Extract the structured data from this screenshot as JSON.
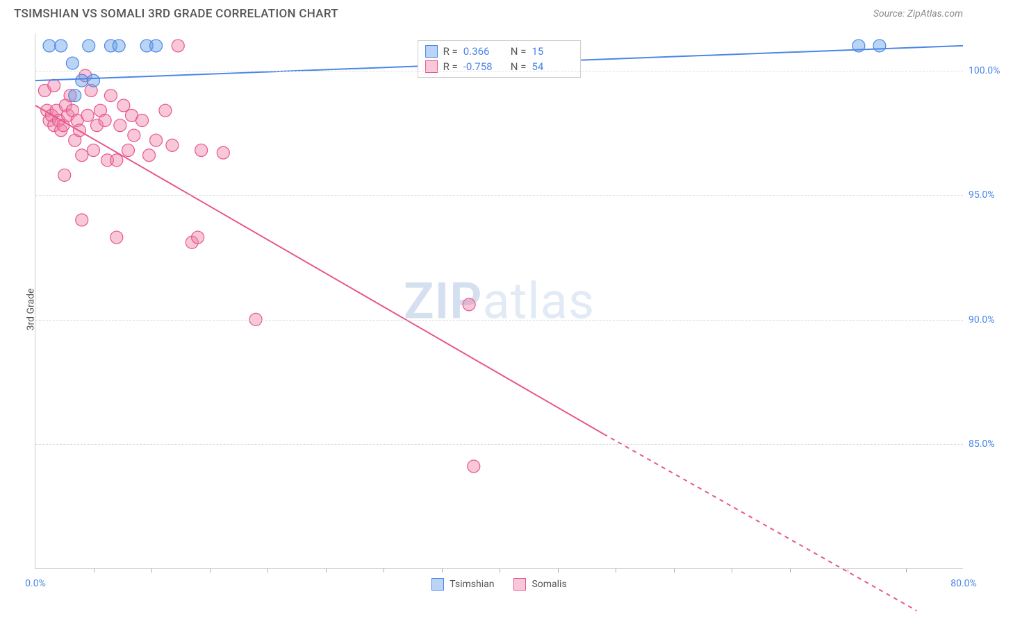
{
  "title": "TSIMSHIAN VS SOMALI 3RD GRADE CORRELATION CHART",
  "source": "Source: ZipAtlas.com",
  "watermark": {
    "bold": "ZIP",
    "rest": "atlas"
  },
  "y_axis_label": "3rd Grade",
  "chart": {
    "type": "scatter",
    "xlim": [
      0,
      80
    ],
    "ylim": [
      80,
      101.5
    ],
    "xticks_minor_step": 5,
    "xticks_labels": [
      {
        "x": 0,
        "label": "0.0%"
      },
      {
        "x": 80,
        "label": "80.0%"
      }
    ],
    "yticks": [
      {
        "y": 85,
        "label": "85.0%"
      },
      {
        "y": 90,
        "label": "90.0%"
      },
      {
        "y": 95,
        "label": "95.0%"
      },
      {
        "y": 100,
        "label": "100.0%"
      }
    ],
    "background_color": "#ffffff",
    "grid_color": "#dddddd",
    "tick_label_color": "#4a86e8",
    "marker_radius": 9,
    "marker_opacity": 0.45,
    "line_width": 2
  },
  "series": {
    "tsimshian": {
      "label": "Tsimshian",
      "color_stroke": "#4a86e8",
      "color_fill": "rgba(100,160,230,0.45)",
      "R": "0.366",
      "N": "15",
      "trend": {
        "x1": 0,
        "y1": 99.6,
        "x2": 80,
        "y2": 101.0
      },
      "points": [
        {
          "x": 1.2,
          "y": 101.0
        },
        {
          "x": 2.2,
          "y": 101.0
        },
        {
          "x": 3.2,
          "y": 100.3
        },
        {
          "x": 3.4,
          "y": 99.0
        },
        {
          "x": 4.0,
          "y": 99.6
        },
        {
          "x": 4.6,
          "y": 101.0
        },
        {
          "x": 5.0,
          "y": 99.6
        },
        {
          "x": 6.5,
          "y": 101.0
        },
        {
          "x": 7.2,
          "y": 101.0
        },
        {
          "x": 9.6,
          "y": 101.0
        },
        {
          "x": 10.4,
          "y": 101.0
        },
        {
          "x": 71.0,
          "y": 101.0
        },
        {
          "x": 72.8,
          "y": 101.0
        }
      ]
    },
    "somalis": {
      "label": "Somalis",
      "color_stroke": "#e8568a",
      "color_fill": "rgba(240,130,170,0.45)",
      "R": "-0.758",
      "N": "54",
      "trend_solid": {
        "x1": 0,
        "y1": 98.6,
        "x2": 49,
        "y2": 85.4
      },
      "trend_dashed": {
        "x1": 49,
        "y1": 85.4,
        "x2": 76,
        "y2": 78.3
      },
      "points": [
        {
          "x": 0.8,
          "y": 99.2
        },
        {
          "x": 1.0,
          "y": 98.4
        },
        {
          "x": 1.2,
          "y": 98.0
        },
        {
          "x": 1.4,
          "y": 98.2
        },
        {
          "x": 1.6,
          "y": 97.8
        },
        {
          "x": 1.6,
          "y": 99.4
        },
        {
          "x": 1.8,
          "y": 98.4
        },
        {
          "x": 2.0,
          "y": 98.0
        },
        {
          "x": 2.2,
          "y": 97.6
        },
        {
          "x": 2.4,
          "y": 97.8
        },
        {
          "x": 2.6,
          "y": 98.6
        },
        {
          "x": 2.8,
          "y": 98.2
        },
        {
          "x": 2.5,
          "y": 95.8
        },
        {
          "x": 3.0,
          "y": 99.0
        },
        {
          "x": 3.2,
          "y": 98.4
        },
        {
          "x": 3.4,
          "y": 97.2
        },
        {
          "x": 3.6,
          "y": 98.0
        },
        {
          "x": 3.8,
          "y": 97.6
        },
        {
          "x": 4.0,
          "y": 96.6
        },
        {
          "x": 4.3,
          "y": 99.8
        },
        {
          "x": 4.5,
          "y": 98.2
        },
        {
          "x": 4.8,
          "y": 99.2
        },
        {
          "x": 5.0,
          "y": 96.8
        },
        {
          "x": 5.3,
          "y": 97.8
        },
        {
          "x": 5.6,
          "y": 98.4
        },
        {
          "x": 6.0,
          "y": 98.0
        },
        {
          "x": 6.2,
          "y": 96.4
        },
        {
          "x": 6.5,
          "y": 99.0
        },
        {
          "x": 7.0,
          "y": 96.4
        },
        {
          "x": 7.3,
          "y": 97.8
        },
        {
          "x": 7.6,
          "y": 98.6
        },
        {
          "x": 8.0,
          "y": 96.8
        },
        {
          "x": 8.3,
          "y": 98.2
        },
        {
          "x": 4.0,
          "y": 94.0
        },
        {
          "x": 7.0,
          "y": 93.3
        },
        {
          "x": 8.5,
          "y": 97.4
        },
        {
          "x": 9.2,
          "y": 98.0
        },
        {
          "x": 9.8,
          "y": 96.6
        },
        {
          "x": 10.4,
          "y": 97.2
        },
        {
          "x": 11.2,
          "y": 98.4
        },
        {
          "x": 11.8,
          "y": 97.0
        },
        {
          "x": 12.3,
          "y": 101.0
        },
        {
          "x": 13.5,
          "y": 93.1
        },
        {
          "x": 14.0,
          "y": 93.3
        },
        {
          "x": 14.3,
          "y": 96.8
        },
        {
          "x": 16.2,
          "y": 96.7
        },
        {
          "x": 19.0,
          "y": 90.0
        },
        {
          "x": 37.4,
          "y": 90.6
        },
        {
          "x": 37.8,
          "y": 84.1
        }
      ]
    }
  },
  "stats_labels": {
    "R": "R =",
    "N": "N ="
  }
}
